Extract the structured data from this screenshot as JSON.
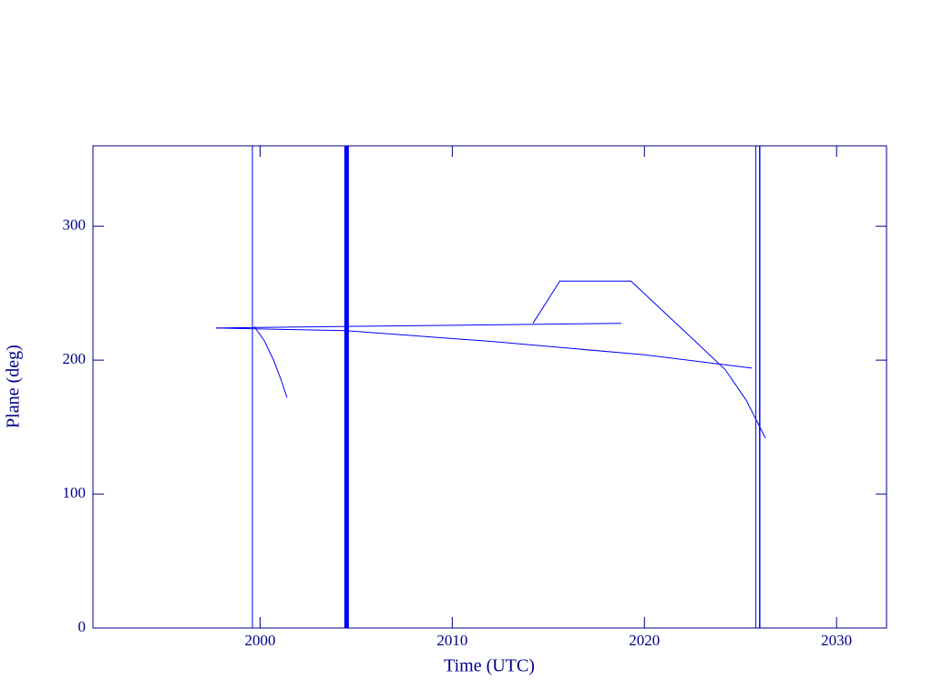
{
  "chart_data": {
    "type": "line",
    "xlabel": "Time (UTC)",
    "ylabel": "Plane (deg)",
    "xlim": [
      1991.3,
      2032.6
    ],
    "xticks": [
      2000,
      2010,
      2020,
      2030
    ],
    "ylim": [
      0,
      360
    ],
    "yticks": [
      0,
      100,
      200,
      300
    ],
    "axis_color": "#00008b",
    "series": [
      {
        "color": "#0000ff",
        "line_width": 1,
        "x": [
          1999.6,
          1999.6
        ],
        "values": [
          0,
          360
        ]
      },
      {
        "color": "#0000ff",
        "line_width": 5,
        "x": [
          2004.5,
          2004.5
        ],
        "values": [
          0,
          360
        ]
      },
      {
        "color": "#0000ff",
        "line_width": 1,
        "x": [
          2025.8,
          2025.8
        ],
        "values": [
          0,
          360
        ]
      },
      {
        "color": "#0000ff",
        "line_width": 1.5,
        "x": [
          2026.0,
          2026.0
        ],
        "values": [
          0,
          360
        ]
      },
      {
        "color": "#0000ff",
        "line_width": 1,
        "x": [
          1999.7,
          2000.2,
          2000.7,
          2001.1,
          2001.4
        ],
        "values": [
          225,
          215,
          200,
          185,
          172
        ]
      },
      {
        "color": "#0000ff",
        "line_width": 1,
        "x": [
          1997.7,
          2004.5,
          2012,
          2020,
          2025.6
        ],
        "values": [
          224,
          222,
          214,
          204,
          194
        ]
      },
      {
        "color": "#0000ff",
        "line_width": 1,
        "x": [
          1997.7,
          2018.8
        ],
        "values": [
          224,
          227.5
        ]
      },
      {
        "color": "#0000ff",
        "line_width": 1,
        "x": [
          2014.2,
          2015.6,
          2019.3,
          2022.5,
          2024.2,
          2025.3,
          2026.3
        ],
        "values": [
          227.5,
          259,
          259,
          216,
          193,
          170,
          141.7
        ]
      }
    ]
  }
}
